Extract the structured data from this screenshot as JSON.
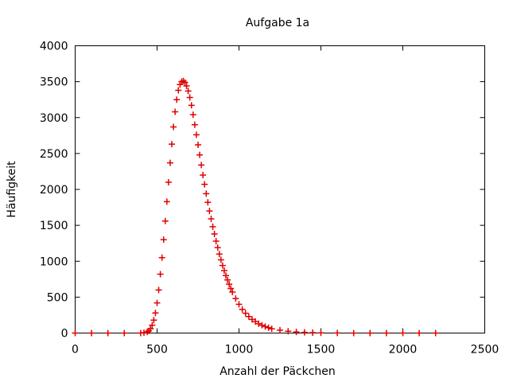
{
  "chart_data": {
    "type": "scatter",
    "title": "Aufgabe 1a",
    "xlabel": "Anzahl der Päckchen",
    "ylabel": "Häufigkeit",
    "xlim": [
      0,
      2500
    ],
    "ylim": [
      0,
      4000
    ],
    "xticks": [
      "0",
      "500",
      "1000",
      "1500",
      "2000",
      "2500"
    ],
    "yticks": [
      "0",
      "500",
      "1000",
      "1500",
      "2000",
      "2500",
      "3000",
      "3500",
      "4000"
    ],
    "grid": false,
    "legend": "none",
    "marker": "+",
    "color": "#e00000",
    "series": [
      {
        "x": [
          0,
          100,
          200,
          300,
          400,
          420,
          440,
          450,
          460,
          470,
          480,
          490,
          500,
          510,
          520,
          530,
          540,
          550,
          560,
          570,
          580,
          590,
          600,
          610,
          620,
          630,
          640,
          650,
          660,
          670,
          680,
          690,
          700,
          710,
          720,
          730,
          740,
          750,
          760,
          770,
          780,
          790,
          800,
          810,
          820,
          830,
          840,
          850,
          860,
          870,
          880,
          890,
          900,
          910,
          920,
          930,
          940,
          950,
          960,
          980,
          1000,
          1020,
          1040,
          1060,
          1080,
          1100,
          1120,
          1140,
          1160,
          1180,
          1200,
          1250,
          1300,
          1350,
          1400,
          1450,
          1500,
          1600,
          1700,
          1800,
          1900,
          2000,
          2100,
          2200
        ],
        "y": [
          0,
          0,
          0,
          0,
          0,
          5,
          15,
          30,
          60,
          110,
          180,
          280,
          420,
          600,
          820,
          1050,
          1300,
          1560,
          1830,
          2100,
          2370,
          2630,
          2870,
          3080,
          3250,
          3380,
          3460,
          3500,
          3510,
          3490,
          3440,
          3370,
          3280,
          3170,
          3040,
          2900,
          2760,
          2620,
          2480,
          2340,
          2200,
          2070,
          1940,
          1820,
          1700,
          1590,
          1480,
          1380,
          1280,
          1190,
          1100,
          1020,
          940,
          870,
          800,
          740,
          680,
          620,
          570,
          480,
          400,
          330,
          275,
          230,
          190,
          160,
          130,
          110,
          90,
          75,
          60,
          40,
          25,
          15,
          10,
          6,
          3,
          1,
          0,
          0,
          0,
          0,
          0,
          0
        ]
      }
    ]
  }
}
